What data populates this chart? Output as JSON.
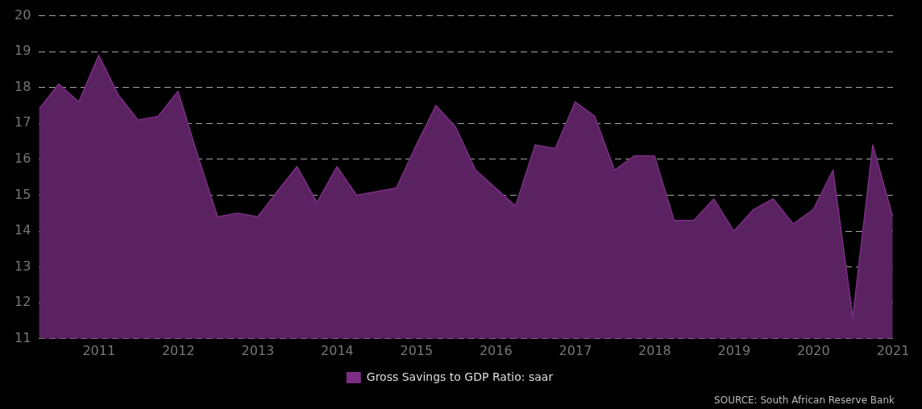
{
  "chart_data": {
    "type": "area",
    "x": [
      "2010-03-31",
      "2010-06-30",
      "2010-09-30",
      "2010-12-31",
      "2011-03-31",
      "2011-06-30",
      "2011-09-30",
      "2011-12-31",
      "2012-03-31",
      "2012-06-30",
      "2012-09-30",
      "2012-12-31",
      "2013-03-31",
      "2013-06-30",
      "2013-09-30",
      "2013-12-31",
      "2014-03-31",
      "2014-06-30",
      "2014-09-30",
      "2014-12-31",
      "2015-03-31",
      "2015-06-30",
      "2015-09-30",
      "2015-12-31",
      "2016-03-31",
      "2016-06-30",
      "2016-09-30",
      "2016-12-31",
      "2017-03-31",
      "2017-06-30",
      "2017-09-30",
      "2017-12-31",
      "2018-03-31",
      "2018-06-30",
      "2018-09-30",
      "2018-12-31",
      "2019-03-31",
      "2019-06-30",
      "2019-09-30",
      "2019-12-31",
      "2020-03-31",
      "2020-06-30",
      "2020-09-30",
      "2020-12-31"
    ],
    "series": [
      {
        "name": "Gross Savings to GDP Ratio: saar",
        "color": "#5b2262",
        "values": [
          17.4,
          18.1,
          17.6,
          18.9,
          17.8,
          17.1,
          17.2,
          17.9,
          16.1,
          14.4,
          14.5,
          14.4,
          15.1,
          15.8,
          14.8,
          15.8,
          15.0,
          15.1,
          15.2,
          16.4,
          17.5,
          16.9,
          15.7,
          15.2,
          14.7,
          16.4,
          16.3,
          17.6,
          17.2,
          15.7,
          16.1,
          16.1,
          14.3,
          14.3,
          14.9,
          14.0,
          14.6,
          14.9,
          14.2,
          14.6,
          15.7,
          11.6,
          16.4,
          14.4
        ]
      }
    ],
    "ylim": [
      11,
      20
    ],
    "yticks": [
      11,
      12,
      13,
      14,
      15,
      16,
      17,
      18,
      19,
      20
    ],
    "xlim": [
      "2010-03-31",
      "2021-01-01"
    ],
    "xticks": [
      {
        "value": "2011-01-01",
        "label": "2011"
      },
      {
        "value": "2012-01-01",
        "label": "2012"
      },
      {
        "value": "2013-01-01",
        "label": "2013"
      },
      {
        "value": "2014-01-01",
        "label": "2014"
      },
      {
        "value": "2015-01-01",
        "label": "2015"
      },
      {
        "value": "2016-01-01",
        "label": "2016"
      },
      {
        "value": "2017-01-01",
        "label": "2017"
      },
      {
        "value": "2018-01-01",
        "label": "2018"
      },
      {
        "value": "2019-01-01",
        "label": "2019"
      },
      {
        "value": "2020-01-01",
        "label": "2020"
      },
      {
        "value": "2021-01-01",
        "label": "2021"
      }
    ],
    "grid": "y",
    "legend": "bottom",
    "line_style": "solid",
    "annotations": [
      "SOURCE: South African Reserve Bank"
    ]
  }
}
